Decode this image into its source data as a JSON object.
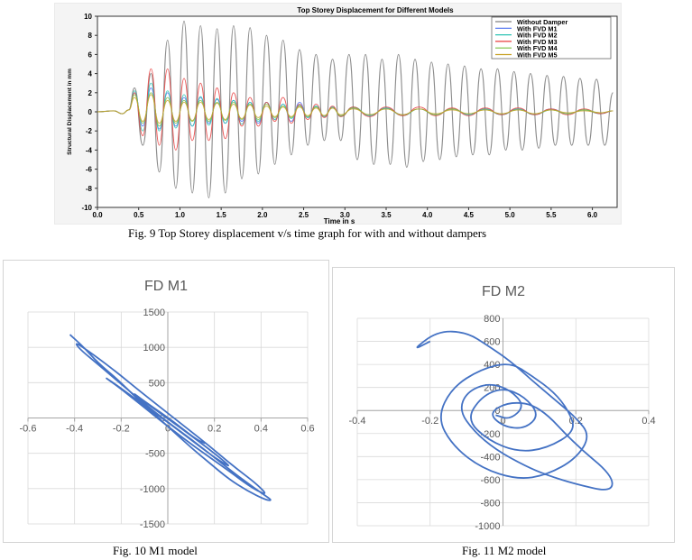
{
  "captions": {
    "fig9": "Fig. 9 Top Storey displacement v/s time graph for with and without dampers",
    "fig10": "Fig. 10 M1 model",
    "fig11": "Fig. 11 M2 model"
  },
  "chart_data": [
    {
      "type": "line",
      "title": "Top Storey Displacement for Different Models",
      "xlabel": "Time in s",
      "ylabel": "Structural Displacement in mm",
      "xlim": [
        0,
        6.3
      ],
      "ylim": [
        -10,
        10
      ],
      "xticks": [
        "0.0",
        "0.5",
        "1.0",
        "1.5",
        "2.0",
        "2.5",
        "3.0",
        "3.5",
        "4.0",
        "4.5",
        "5.0",
        "5.5",
        "6.0"
      ],
      "yticks": [
        "10",
        "8",
        "6",
        "4",
        "2",
        "0",
        "-2",
        "-4",
        "-6",
        "-8",
        "-10"
      ],
      "legend_position": "top-right",
      "series": [
        {
          "name": "Without Damper",
          "color": "#808080",
          "x": [
            0.45,
            0.55,
            0.65,
            0.75,
            0.85,
            0.95,
            1.05,
            1.15,
            1.25,
            1.35,
            1.45,
            1.55,
            1.65,
            1.75,
            1.85,
            1.95,
            2.05,
            2.15,
            2.25,
            2.35,
            2.45,
            2.55,
            2.65,
            2.75,
            2.85,
            2.95,
            3.05,
            3.15,
            3.25,
            3.35,
            3.45,
            3.55,
            3.65,
            3.75,
            3.85,
            3.95,
            4.05,
            4.15,
            4.25,
            4.35,
            4.45,
            4.55,
            4.65,
            4.75,
            4.85,
            4.95,
            5.05,
            5.15,
            5.25,
            5.35,
            5.45,
            5.55,
            5.65,
            5.75,
            5.85,
            5.95,
            6.05,
            6.15,
            6.25
          ],
          "y": [
            2.5,
            -3.5,
            4.0,
            -6.3,
            7.5,
            -8.0,
            9.5,
            -8.5,
            9.0,
            -9.0,
            8.7,
            -8.5,
            9.0,
            -7.0,
            8.8,
            -6.5,
            8.0,
            -5.5,
            7.5,
            -4.5,
            6.5,
            -3.5,
            6.0,
            -3.0,
            5.5,
            -3.0,
            6.0,
            -5.0,
            6.0,
            -5.5,
            5.5,
            -5.5,
            6.0,
            -5.8,
            5.5,
            -5.2,
            5.2,
            -5.0,
            5.0,
            -4.7,
            4.8,
            -4.5,
            4.5,
            -4.5,
            4.5,
            -4.0,
            4.2,
            -4.0,
            4.0,
            -3.8,
            3.8,
            -3.5,
            3.7,
            -3.5,
            3.5,
            -3.5,
            3.4,
            -3.5,
            2.0
          ]
        },
        {
          "name": "With FVD M1",
          "color": "#4a6ff0",
          "x": [
            0.45,
            0.55,
            0.65,
            0.75,
            0.85,
            0.95,
            1.05,
            1.15,
            1.25,
            1.35,
            1.45,
            1.55,
            1.65,
            1.75,
            1.85,
            1.95,
            2.05,
            2.15,
            2.25,
            2.35,
            2.45,
            2.55,
            2.65,
            2.75,
            2.85,
            2.95,
            3.1,
            3.3,
            3.5,
            3.7,
            3.9,
            4.1,
            4.3,
            4.5,
            4.7,
            4.9,
            5.1,
            5.3,
            5.5,
            5.7,
            5.9,
            6.1,
            6.25
          ],
          "y": [
            2.0,
            -1.5,
            2.5,
            -1.8,
            2.0,
            -1.5,
            1.5,
            -1.5,
            1.5,
            -1.2,
            1.3,
            -1.2,
            1.2,
            -1.0,
            1.0,
            -1.2,
            1.0,
            -0.8,
            0.8,
            -1.0,
            1.0,
            -0.6,
            0.6,
            -0.5,
            0.5,
            -0.4,
            0.4,
            -0.4,
            0.4,
            -0.3,
            0.3,
            -0.3,
            0.3,
            -0.3,
            0.3,
            -0.3,
            0.3,
            -0.3,
            0.3,
            -0.2,
            0.2,
            -0.2,
            0.1
          ]
        },
        {
          "name": "With FVD M2",
          "color": "#2ec4b4",
          "x": [
            0.45,
            0.55,
            0.65,
            0.75,
            0.85,
            0.95,
            1.05,
            1.15,
            1.25,
            1.35,
            1.45,
            1.55,
            1.65,
            1.75,
            1.85,
            1.95,
            2.05,
            2.15,
            2.25,
            2.35,
            2.45,
            2.55,
            2.65,
            2.75,
            2.85,
            2.95,
            3.1,
            3.3,
            3.5,
            3.7,
            3.9,
            4.1,
            4.3,
            4.5,
            4.7,
            4.9,
            5.1,
            5.3,
            5.5,
            5.7,
            5.9,
            6.1,
            6.25
          ],
          "y": [
            2.2,
            -2.0,
            3.0,
            -2.0,
            2.2,
            -1.7,
            1.8,
            -1.5,
            1.6,
            -1.4,
            1.4,
            -1.2,
            1.2,
            -1.3,
            1.0,
            -1.0,
            1.0,
            -0.8,
            0.8,
            -0.7,
            0.7,
            -0.6,
            0.6,
            -0.5,
            0.5,
            -0.5,
            0.5,
            -0.4,
            0.4,
            -0.4,
            0.3,
            -0.3,
            0.3,
            -0.3,
            0.3,
            -0.3,
            0.3,
            -0.3,
            0.2,
            -0.2,
            0.2,
            -0.2,
            0.1
          ]
        },
        {
          "name": "With FVD M3",
          "color": "#e83c3c",
          "x": [
            0.45,
            0.55,
            0.65,
            0.75,
            0.85,
            0.95,
            1.05,
            1.15,
            1.25,
            1.35,
            1.45,
            1.55,
            1.65,
            1.75,
            1.85,
            1.95,
            2.05,
            2.15,
            2.25,
            2.35,
            2.45,
            2.55,
            2.65,
            2.75,
            2.85,
            2.95,
            3.1,
            3.3,
            3.5,
            3.7,
            3.9,
            4.1,
            4.3,
            4.5,
            4.7,
            4.9,
            5.1,
            5.3,
            5.5,
            5.7,
            5.9,
            6.1,
            6.25
          ],
          "y": [
            2.0,
            -2.5,
            4.5,
            -3.5,
            4.5,
            -4.0,
            3.5,
            -3.0,
            3.0,
            -3.0,
            2.5,
            -2.8,
            2.0,
            -1.5,
            1.5,
            -1.5,
            1.0,
            -1.0,
            1.5,
            -1.2,
            0.8,
            -0.8,
            0.8,
            -0.6,
            0.6,
            -0.5,
            0.5,
            -0.5,
            0.5,
            -0.4,
            0.5,
            -0.4,
            0.4,
            -0.4,
            0.4,
            -0.3,
            0.4,
            -0.3,
            0.3,
            -0.3,
            0.3,
            -0.2,
            0.1
          ]
        },
        {
          "name": "With FVD M4",
          "color": "#7ac143",
          "x": [
            0.45,
            0.55,
            0.65,
            0.75,
            0.85,
            0.95,
            1.05,
            1.15,
            1.25,
            1.35,
            1.45,
            1.55,
            1.65,
            1.75,
            1.85,
            1.95,
            2.05,
            2.15,
            2.25,
            2.35,
            2.45,
            2.55,
            2.65,
            2.75,
            2.85,
            2.95,
            3.1,
            3.3,
            3.5,
            3.7,
            3.9,
            4.1,
            4.3,
            4.5,
            4.7,
            4.9,
            5.1,
            5.3,
            5.5,
            5.7,
            5.9,
            6.1,
            6.25
          ],
          "y": [
            1.8,
            -1.2,
            2.0,
            -1.5,
            1.5,
            -1.2,
            1.2,
            -1.0,
            1.2,
            -1.0,
            1.0,
            -0.9,
            1.0,
            -0.8,
            0.8,
            -0.8,
            0.8,
            -0.6,
            0.6,
            -0.6,
            0.6,
            -0.5,
            0.5,
            -0.4,
            0.4,
            -0.4,
            0.4,
            -0.3,
            0.3,
            -0.3,
            0.3,
            -0.3,
            0.3,
            -0.2,
            0.2,
            -0.2,
            0.2,
            -0.2,
            0.2,
            -0.2,
            0.2,
            -0.1,
            0.1
          ]
        },
        {
          "name": "With FVD M5",
          "color": "#c9a227",
          "x": [
            0.45,
            0.55,
            0.65,
            0.75,
            0.85,
            0.95,
            1.05,
            1.15,
            1.25,
            1.35,
            1.45,
            1.55,
            1.65,
            1.75,
            1.85,
            1.95,
            2.05,
            2.15,
            2.25,
            2.35,
            2.45,
            2.55,
            2.65,
            2.75,
            2.85,
            2.95,
            3.1,
            3.3,
            3.5,
            3.7,
            3.9,
            4.1,
            4.3,
            4.5,
            4.7,
            4.9,
            5.1,
            5.3,
            5.5,
            5.7,
            5.9,
            6.1,
            6.25
          ],
          "y": [
            1.5,
            -1.0,
            1.8,
            -1.2,
            1.2,
            -1.0,
            1.0,
            -0.9,
            1.0,
            -0.8,
            0.9,
            -0.8,
            0.8,
            -0.7,
            0.7,
            -0.6,
            0.6,
            -0.5,
            0.5,
            -0.5,
            0.5,
            -0.4,
            0.4,
            -0.4,
            0.4,
            -0.3,
            0.3,
            -0.3,
            0.3,
            -0.3,
            0.3,
            -0.2,
            0.2,
            -0.2,
            0.2,
            -0.2,
            0.2,
            -0.2,
            0.2,
            -0.1,
            0.1,
            -0.1,
            0.1
          ]
        }
      ]
    },
    {
      "type": "scatter",
      "title": "FD M1",
      "xlim": [
        -0.6,
        0.6
      ],
      "ylim": [
        -1500,
        1500
      ],
      "xticks": [
        "-0.6",
        "-0.4",
        "-0.2",
        "0",
        "0.2",
        "0.4",
        "0.6"
      ],
      "yticks": [
        "1500",
        "1000",
        "500",
        "0",
        "-500",
        "-1000",
        "-1500"
      ],
      "series": [
        {
          "color": "#4472c4",
          "x": [
            -0.42,
            -0.36,
            -0.3,
            -0.22,
            -0.14,
            -0.06,
            0.02,
            0.1,
            0.18,
            0.26,
            0.34,
            0.42,
            0.45,
            0.4,
            0.3,
            0.2,
            0.1,
            0.0,
            -0.1,
            -0.2,
            -0.3,
            -0.38,
            -0.4,
            -0.32,
            -0.22,
            -0.12,
            -0.02,
            0.08,
            0.18,
            0.28,
            0.38,
            0.43,
            0.36,
            0.25,
            0.12,
            0.0,
            -0.12,
            -0.22,
            -0.28,
            -0.2,
            -0.1,
            0.0,
            0.1,
            0.2,
            0.28,
            0.2,
            0.1,
            0.0,
            -0.1,
            -0.16,
            -0.08,
            0.02,
            0.12,
            0.16
          ],
          "y": [
            1180,
            1000,
            780,
            560,
            300,
            60,
            -180,
            -420,
            -640,
            -860,
            -1030,
            -1160,
            -1170,
            -1060,
            -820,
            -560,
            -300,
            -60,
            200,
            480,
            760,
            980,
            1080,
            900,
            650,
            380,
            120,
            -140,
            -400,
            -680,
            -930,
            -1100,
            -990,
            -720,
            -420,
            -120,
            200,
            460,
            600,
            420,
            170,
            -60,
            -310,
            -560,
            -720,
            -500,
            -250,
            -10,
            230,
            380,
            190,
            -40,
            -300,
            -360
          ]
        }
      ]
    },
    {
      "type": "scatter",
      "title": "FD M2",
      "xlim": [
        -0.4,
        0.4
      ],
      "ylim": [
        -1000,
        800
      ],
      "xticks": [
        "-0.4",
        "-0.2",
        "0",
        "0.2",
        "0.4"
      ],
      "yticks": [
        "800",
        "600",
        "400",
        "200",
        "0",
        "-200",
        "-400",
        "-600",
        "-800",
        "-1000"
      ],
      "series": [
        {
          "color": "#4472c4",
          "x": [
            -0.2,
            -0.25,
            -0.18,
            -0.1,
            -0.04,
            0.02,
            0.08,
            0.14,
            0.2,
            0.24,
            0.2,
            0.12,
            0.04,
            -0.06,
            -0.14,
            -0.18,
            -0.14,
            -0.06,
            0.02,
            0.08,
            0.14,
            0.18,
            0.2,
            0.12,
            0.04,
            -0.04,
            -0.1,
            -0.06,
            0.0,
            0.06,
            0.1,
            0.06,
            0.0,
            -0.04,
            0.02,
            0.1,
            0.2,
            0.3,
            0.3,
            0.2,
            0.12,
            0.06,
            -0.02,
            -0.08,
            -0.12,
            -0.1,
            -0.04,
            0.02,
            0.06,
            0.02,
            -0.02
          ],
          "y": [
            600,
            520,
            690,
            680,
            560,
            430,
            260,
            100,
            -60,
            -220,
            -420,
            -560,
            -600,
            -500,
            -300,
            -60,
            200,
            360,
            420,
            300,
            160,
            0,
            -180,
            -330,
            -360,
            -260,
            -80,
            120,
            200,
            120,
            -40,
            -160,
            -140,
            -20,
            80,
            40,
            -300,
            -560,
            -710,
            -640,
            -560,
            -480,
            -340,
            -180,
            0,
            160,
            240,
            180,
            40,
            -80,
            -40
          ]
        }
      ]
    }
  ]
}
